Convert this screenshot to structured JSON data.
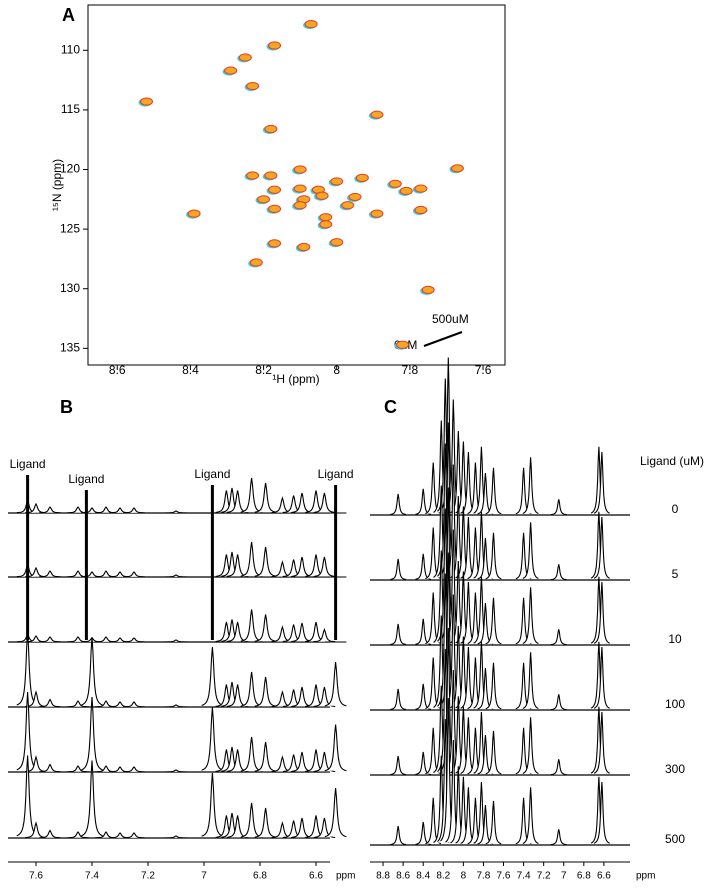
{
  "figure": {
    "A": {
      "type": "scatter",
      "label": "A",
      "xlabel": "¹H (ppm)",
      "ylabel": "¹⁵N (ppm)",
      "xlim": [
        8.68,
        7.54
      ],
      "ylim": [
        106.2,
        136.4
      ],
      "xticks": [
        8.6,
        8.4,
        8.2,
        8.0,
        7.8,
        7.6
      ],
      "yticks": [
        110,
        115,
        120,
        125,
        130,
        135
      ],
      "color": "#f5a623",
      "x": [
        8.07,
        8.17,
        8.25,
        8.29,
        8.23,
        8.52,
        7.89,
        8.18,
        7.67,
        8.1,
        8.23,
        8.18,
        8.0,
        7.93,
        7.84,
        7.77,
        8.17,
        8.1,
        8.05,
        8.2,
        8.09,
        8.04,
        7.95,
        7.81,
        8.1,
        8.17,
        7.97,
        7.89,
        7.77,
        8.39,
        8.03,
        8.03,
        8.17,
        8.09,
        8.0,
        8.22,
        7.75,
        7.82
      ],
      "y": [
        107.8,
        109.6,
        110.6,
        111.7,
        113.0,
        114.3,
        115.4,
        116.6,
        119.9,
        120.0,
        120.5,
        120.5,
        121.0,
        120.7,
        121.2,
        121.6,
        121.7,
        121.6,
        121.7,
        122.5,
        122.5,
        122.2,
        122.3,
        121.8,
        123.0,
        123.3,
        123.0,
        123.7,
        123.4,
        123.7,
        124.0,
        124.6,
        126.2,
        126.5,
        126.1,
        127.8,
        130.1,
        134.7
      ],
      "annotations": [
        "500uM",
        "0uM"
      ]
    },
    "B": {
      "type": "spectra",
      "label": "B",
      "xunit": "ppm",
      "xlim": [
        7.7,
        6.55
      ],
      "xticks": [
        7.6,
        7.4,
        7.2,
        7.0,
        6.8,
        6.6
      ],
      "ligand_labels": [
        "Ligand",
        "Ligand",
        "Ligand",
        "Ligand"
      ],
      "ligand_x": [
        7.63,
        7.42,
        6.97,
        6.53
      ],
      "peaks_x": [
        7.63,
        7.6,
        7.55,
        7.45,
        7.4,
        7.35,
        7.3,
        7.25,
        7.1,
        6.97,
        6.92,
        6.9,
        6.88,
        6.83,
        6.78,
        6.72,
        6.68,
        6.65,
        6.6,
        6.57,
        6.53
      ],
      "traces": [
        {
          "heights": [
            25,
            18,
            12,
            12,
            10,
            12,
            10,
            10,
            4,
            0,
            45,
            50,
            45,
            70,
            60,
            30,
            35,
            40,
            45,
            40,
            0
          ]
        },
        {
          "heights": [
            25,
            18,
            12,
            12,
            10,
            12,
            10,
            10,
            4,
            0,
            45,
            50,
            45,
            70,
            60,
            30,
            35,
            40,
            45,
            40,
            0
          ]
        },
        {
          "heights": [
            15,
            12,
            10,
            10,
            8,
            10,
            8,
            8,
            4,
            0,
            40,
            45,
            40,
            65,
            55,
            30,
            35,
            38,
            40,
            25,
            0
          ]
        },
        {
          "heights": [
            150,
            30,
            15,
            12,
            140,
            12,
            10,
            10,
            4,
            120,
            45,
            50,
            45,
            70,
            60,
            30,
            35,
            40,
            45,
            40,
            90
          ]
        },
        {
          "heights": [
            160,
            30,
            15,
            12,
            150,
            12,
            10,
            10,
            4,
            130,
            45,
            50,
            45,
            70,
            60,
            30,
            35,
            40,
            45,
            40,
            95
          ]
        },
        {
          "heights": [
            165,
            30,
            15,
            12,
            155,
            12,
            10,
            10,
            4,
            130,
            45,
            50,
            45,
            70,
            60,
            30,
            35,
            40,
            45,
            40,
            100
          ]
        }
      ]
    },
    "C": {
      "type": "spectra",
      "label": "C",
      "xunit": "ppm",
      "xlim": [
        8.93,
        6.34
      ],
      "xticks": [
        8.8,
        8.6,
        8.4,
        8.2,
        8.0,
        7.8,
        7.6,
        7.4,
        7.2,
        7.0,
        6.8,
        6.6
      ],
      "legend_title": "Ligand (uM)",
      "peaks_x": [
        8.65,
        8.4,
        8.3,
        8.22,
        8.18,
        8.15,
        8.1,
        8.05,
        8.0,
        7.95,
        7.88,
        7.82,
        7.78,
        7.7,
        7.4,
        7.33,
        7.05,
        6.65,
        6.62
      ],
      "traces": [
        {
          "label": "0",
          "heights": [
            20,
            25,
            50,
            90,
            130,
            150,
            110,
            80,
            70,
            60,
            50,
            65,
            40,
            45,
            45,
            55,
            15,
            65,
            60
          ]
        },
        {
          "label": "5",
          "heights": [
            20,
            25,
            50,
            90,
            130,
            150,
            110,
            80,
            70,
            60,
            50,
            65,
            40,
            45,
            45,
            55,
            15,
            65,
            60
          ]
        },
        {
          "label": "10",
          "heights": [
            20,
            25,
            50,
            90,
            130,
            150,
            110,
            80,
            70,
            60,
            50,
            65,
            40,
            45,
            45,
            55,
            15,
            65,
            60
          ]
        },
        {
          "label": "100",
          "heights": [
            20,
            25,
            50,
            90,
            130,
            150,
            110,
            80,
            70,
            60,
            50,
            65,
            40,
            45,
            45,
            55,
            15,
            65,
            60
          ]
        },
        {
          "label": "300",
          "heights": [
            18,
            22,
            45,
            85,
            120,
            140,
            100,
            75,
            65,
            55,
            45,
            60,
            38,
            42,
            45,
            55,
            15,
            65,
            60
          ]
        },
        {
          "label": "500",
          "heights": [
            18,
            22,
            45,
            85,
            120,
            140,
            100,
            75,
            65,
            55,
            45,
            60,
            38,
            42,
            45,
            55,
            15,
            65,
            60
          ]
        }
      ]
    }
  }
}
